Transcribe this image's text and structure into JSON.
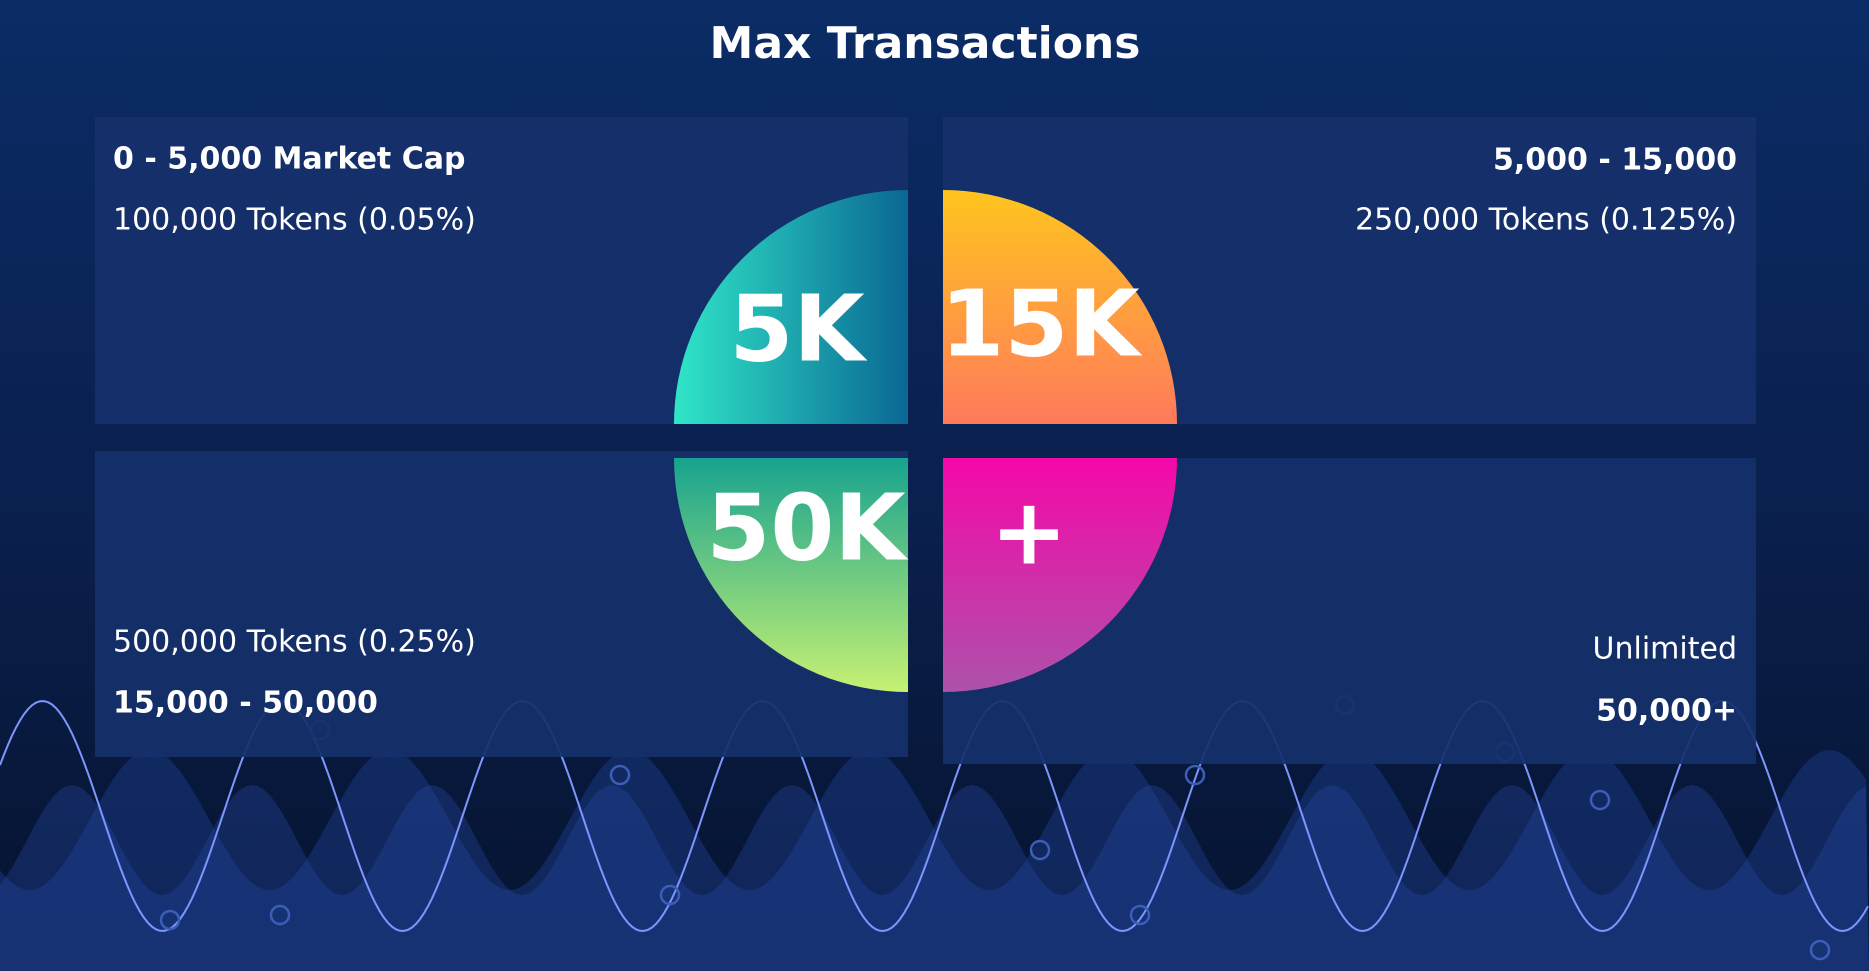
{
  "title": "Max Transactions",
  "quadrants": [
    {
      "range": "0 - 5,000 Market Cap",
      "tokens": "100,000 Tokens (0.05%)",
      "badge": "5K"
    },
    {
      "range": "5,000 - 15,000",
      "tokens": "250,000 Tokens (0.125%)",
      "badge": "15K"
    },
    {
      "range": "15,000 - 50,000",
      "tokens": "500,000 Tokens (0.25%)",
      "badge": "50K"
    },
    {
      "range": "50,000+",
      "tokens": "Unlimited",
      "badge": "+"
    }
  ]
}
